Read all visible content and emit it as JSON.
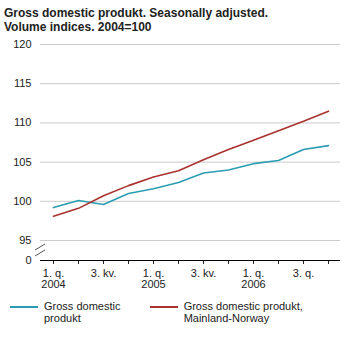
{
  "chart_data": {
    "type": "line",
    "title": "Gross domestic produkt. Seasonally adjusted.\nVolume indices. 2004=100",
    "categories": [
      "1. q.\n2004",
      null,
      "3. kv.",
      null,
      "1. q.\n2005",
      null,
      "3. kv.",
      null,
      "1. q.\n2006",
      null,
      "3. q.",
      null
    ],
    "series": [
      {
        "name": "Gross domestic produkt",
        "color": "#2a9db3",
        "values": [
          99.2,
          100.1,
          99.6,
          101.0,
          101.6,
          102.4,
          103.6,
          104.0,
          104.8,
          105.2,
          106.6,
          107.1
        ]
      },
      {
        "name": "Gross domestic produkt, Mainland-Norway",
        "color": "#a8322d",
        "values": [
          98.1,
          99.1,
          100.7,
          102.0,
          103.1,
          103.9,
          105.3,
          106.6,
          107.8,
          109.0,
          110.2,
          111.5
        ]
      }
    ],
    "ylim": [
      0,
      120
    ],
    "yticks": [
      0,
      95,
      100,
      105,
      110,
      115,
      120
    ],
    "grid": true,
    "legend": "bottom"
  }
}
